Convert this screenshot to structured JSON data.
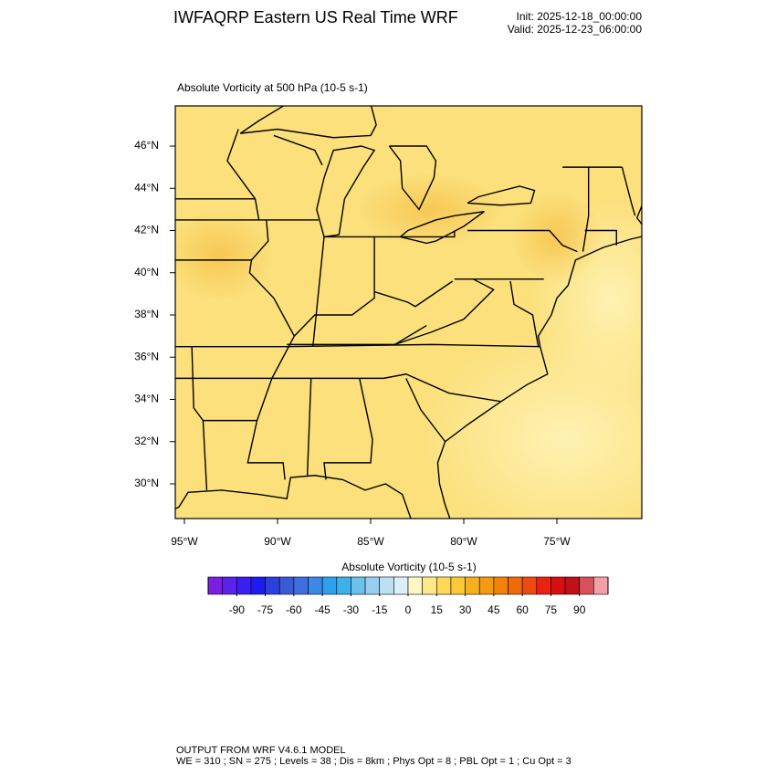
{
  "header": {
    "title": "IWFAQRP Eastern US Real Time WRF",
    "init": "Init: 2025-12-18_00:00:00",
    "valid": "Valid: 2025-12-23_06:00:00"
  },
  "map": {
    "title": "Absolute Vorticity at 500 hPa   (10-5 s-1)",
    "lat_ticks": [
      {
        "value": 46,
        "label": "46°N"
      },
      {
        "value": 44,
        "label": "44°N"
      },
      {
        "value": 42,
        "label": "42°N"
      },
      {
        "value": 40,
        "label": "40°N"
      },
      {
        "value": 38,
        "label": "38°N"
      },
      {
        "value": 36,
        "label": "36°N"
      },
      {
        "value": 34,
        "label": "34°N"
      },
      {
        "value": 32,
        "label": "32°N"
      },
      {
        "value": 30,
        "label": "30°N"
      }
    ],
    "lon_ticks": [
      {
        "value": -95,
        "label": "95°W"
      },
      {
        "value": -90,
        "label": "90°W"
      },
      {
        "value": -85,
        "label": "85°W"
      },
      {
        "value": -80,
        "label": "80°W"
      },
      {
        "value": -75,
        "label": "75°W"
      }
    ]
  },
  "colorbar": {
    "title": "Absolute Vorticity  (10-5 s-1)",
    "range": [
      -105,
      105
    ],
    "colors": [
      "#7a1fe0",
      "#5a22ea",
      "#3a20f0",
      "#1a1cf0",
      "#2c40e0",
      "#3a5ad8",
      "#3f6fdc",
      "#3c88e6",
      "#2ea0ee",
      "#40b0ea",
      "#6cc0ec",
      "#96d0ee",
      "#bcdff2",
      "#dceef8",
      "#fff6c8",
      "#fde98a",
      "#fcd95a",
      "#fbc83a",
      "#f8b020",
      "#f59a10",
      "#f28208",
      "#ef6a08",
      "#ec4a10",
      "#ea2210",
      "#d80e10",
      "#c01018",
      "#d8505a",
      "#f2a0a8"
    ],
    "ticks": [
      -90,
      -75,
      -60,
      -45,
      -30,
      -15,
      0,
      15,
      30,
      45,
      60,
      75,
      90
    ]
  },
  "footer": {
    "line1": "OUTPUT FROM WRF V4.6.1 MODEL",
    "line2": "WE = 310 ; SN = 275 ; Levels = 38 ; Dis = 8km ; Phys Opt = 8 ; PBL Opt = 1 ; Cu Opt = 3"
  }
}
